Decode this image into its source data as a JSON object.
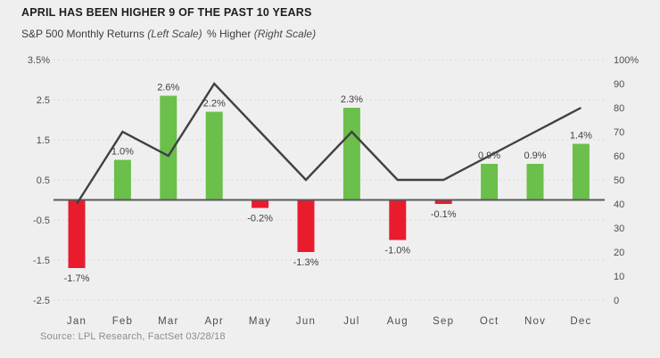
{
  "title": "APRIL HAS BEEN HIGHER 9 OF THE PAST 10 YEARS",
  "legend": {
    "left": {
      "label": "S&P 500 Monthly Returns",
      "scale_note": "(Left Scale)"
    },
    "right": {
      "label": "% Higher",
      "scale_note": "(Right Scale)"
    }
  },
  "source": "Source: LPL Research, FactSet 03/28/18",
  "colors": {
    "background": "#f0efef",
    "positive_bar": "#6bbf4b",
    "negative_bar": "#e81c2d",
    "line": "#414042",
    "zero_axis": "#58595b",
    "gridline": "#d9d9d9",
    "axis_text": "#4d4d4d",
    "value_label_text": "#414042",
    "title_text": "#1d1d1f",
    "source_text": "#8d8d8d"
  },
  "chart_data": {
    "type": "bar",
    "subtype": "bar-and-line-combo",
    "title": "APRIL HAS BEEN HIGHER 9 OF THE PAST 10 YEARS",
    "categories": [
      "Jan",
      "Feb",
      "Mar",
      "Apr",
      "May",
      "Jun",
      "Jul",
      "Aug",
      "Sep",
      "Oct",
      "Nov",
      "Dec"
    ],
    "series": [
      {
        "name": "S&P 500 Monthly Returns",
        "type": "bar",
        "axis": "left",
        "values": [
          -1.7,
          1.0,
          2.6,
          2.2,
          -0.2,
          -1.3,
          2.3,
          -1.0,
          -0.1,
          0.9,
          0.9,
          1.4
        ],
        "labels": [
          "-1.7%",
          "1.0%",
          "2.6%",
          "2.2%",
          "-0.2%",
          "-1.3%",
          "2.3%",
          "-1.0%",
          "-0.1%",
          "0.9%",
          "0.9%",
          "1.4%"
        ]
      },
      {
        "name": "% Higher",
        "type": "line",
        "axis": "right",
        "values": [
          40,
          70,
          60,
          90,
          70,
          50,
          70,
          50,
          50,
          60,
          70,
          80
        ]
      }
    ],
    "left_axis": {
      "label": "S&P 500 Monthly Returns (Left Scale)",
      "tick_labels": [
        "3.5%",
        "2.5",
        "1.5",
        "0.5",
        "-0.5",
        "-1.5",
        "-2.5"
      ],
      "tick_values": [
        3.5,
        2.5,
        1.5,
        0.5,
        -0.5,
        -1.5,
        -2.5
      ],
      "range": [
        -2.5,
        3.5
      ]
    },
    "right_axis": {
      "label": "% Higher (Right Scale)",
      "tick_labels": [
        "100%",
        "90",
        "80",
        "70",
        "60",
        "50",
        "40",
        "30",
        "20",
        "10",
        "0"
      ],
      "tick_values": [
        100,
        90,
        80,
        70,
        60,
        50,
        40,
        30,
        20,
        10,
        0
      ],
      "range": [
        0,
        100
      ]
    },
    "grid": {
      "horizontal": true,
      "style": "dotted",
      "at": "left-axis-ticks"
    },
    "zero_line": true,
    "legend_position": "top-left"
  }
}
